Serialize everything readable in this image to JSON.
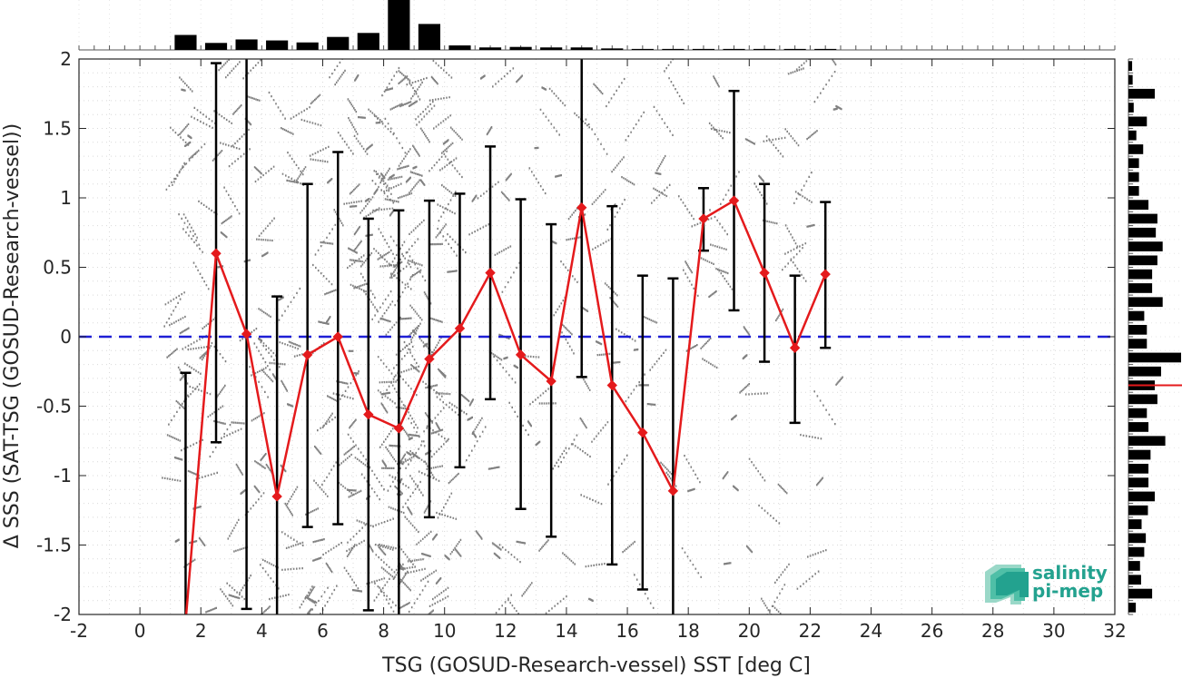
{
  "chart_data": {
    "type": "scatter",
    "xlabel": "TSG (GOSUD-Research-vessel) SST [deg C]",
    "ylabel": "Δ SSS (SAT-TSG (GOSUD-Research-vessel))",
    "xlim": [
      -2,
      32
    ],
    "ylim": [
      -2,
      2
    ],
    "xticks": [
      -2,
      0,
      2,
      4,
      6,
      8,
      10,
      12,
      14,
      16,
      18,
      20,
      22,
      24,
      26,
      28,
      30,
      32
    ],
    "yticks": [
      -2,
      -1.5,
      -1,
      -0.5,
      0,
      0.5,
      1,
      1.5,
      2
    ],
    "grid": true,
    "zero_line": {
      "y": 0,
      "color": "#1f1fd6",
      "style": "dashed"
    },
    "binned_mean": {
      "color": "#e41a1c",
      "x": [
        1.5,
        2.5,
        3.5,
        4.5,
        5.5,
        6.5,
        7.5,
        8.5,
        9.5,
        10.5,
        11.5,
        12.5,
        13.5,
        14.5,
        15.5,
        16.5,
        17.5,
        18.5,
        19.5,
        20.5,
        21.5,
        22.5
      ],
      "mean": [
        -2.05,
        0.6,
        0.02,
        -1.15,
        -0.13,
        0.0,
        -0.56,
        -0.66,
        -0.16,
        0.06,
        0.46,
        -0.13,
        -0.32,
        0.93,
        -0.35,
        -0.69,
        -1.11,
        0.85,
        0.98,
        0.46,
        -0.08,
        0.45
      ],
      "err_low": [
        -2.0,
        -0.76,
        -1.96,
        -2.0,
        -1.37,
        -1.35,
        -1.97,
        -2.0,
        -1.3,
        -0.94,
        -0.45,
        -1.24,
        -1.44,
        -0.29,
        -1.64,
        -1.82,
        -2.0,
        0.62,
        0.19,
        -0.18,
        -0.62,
        -0.08
      ],
      "err_high": [
        -0.26,
        1.97,
        2.0,
        0.29,
        1.1,
        1.33,
        0.85,
        0.91,
        0.98,
        1.03,
        1.37,
        0.99,
        0.81,
        2.0,
        0.94,
        0.44,
        0.42,
        1.07,
        1.77,
        1.1,
        0.44,
        0.97
      ]
    },
    "top_histogram": {
      "x": [
        1.5,
        2.5,
        3.5,
        4.5,
        5.5,
        6.5,
        7.5,
        8.5,
        9.5,
        10.5,
        11.5,
        12.5,
        13.5,
        14.5,
        15.5,
        16.5,
        17.5,
        18.5,
        19.5,
        20.5,
        21.5,
        22.5
      ],
      "fraction": [
        0.3,
        0.14,
        0.21,
        0.19,
        0.15,
        0.26,
        0.34,
        1.0,
        0.52,
        0.09,
        0.05,
        0.06,
        0.05,
        0.05,
        0.03,
        0.02,
        0.02,
        0.02,
        0.02,
        0.02,
        0.02,
        0.02
      ]
    },
    "right_histogram": {
      "y": [
        1.95,
        1.85,
        1.75,
        1.65,
        1.55,
        1.45,
        1.35,
        1.25,
        1.15,
        1.05,
        0.95,
        0.85,
        0.75,
        0.65,
        0.55,
        0.45,
        0.35,
        0.25,
        0.15,
        0.05,
        -0.05,
        -0.15,
        -0.25,
        -0.35,
        -0.45,
        -0.55,
        -0.65,
        -0.75,
        -0.85,
        -0.95,
        -1.05,
        -1.15,
        -1.25,
        -1.35,
        -1.45,
        -1.55,
        -1.65,
        -1.75,
        -1.85,
        -1.95
      ],
      "fraction": [
        0.07,
        0.08,
        0.5,
        0.1,
        0.35,
        0.15,
        0.28,
        0.2,
        0.2,
        0.2,
        0.38,
        0.55,
        0.52,
        0.65,
        0.55,
        0.45,
        0.45,
        0.65,
        0.3,
        0.35,
        0.35,
        1.0,
        0.62,
        0.5,
        0.55,
        0.35,
        0.38,
        0.7,
        0.42,
        0.38,
        0.38,
        0.5,
        0.37,
        0.25,
        0.33,
        0.3,
        0.22,
        0.24,
        0.45,
        0.14
      ],
      "median_line": {
        "y": -0.35,
        "color": "#e41a1c"
      }
    },
    "scatter_color": "#808080"
  },
  "logo": {
    "line1": "salinity",
    "line2": "pi-mep",
    "color": "#23a28f"
  }
}
